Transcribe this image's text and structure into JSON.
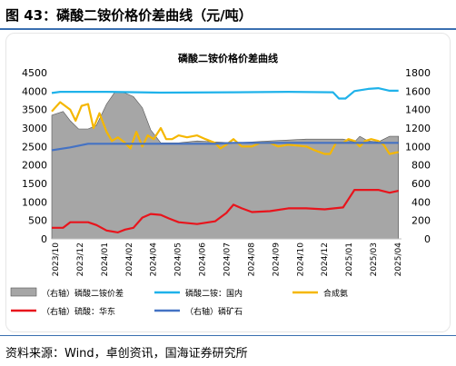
{
  "figure": {
    "label": "图 43：磷酸二铵价格价差曲线（元/吨）",
    "source": "资料来源：Wind，卓创资讯，国海证券研究所"
  },
  "colors": {
    "area": "#a6a6a6",
    "dap_domestic": "#1fb2ea",
    "ammonia": "#f5b700",
    "sulfuric": "#e8141c",
    "phosphate_rock": "#4472c4"
  },
  "chart_data": {
    "type": "area",
    "title": "磷酸二铵价格价差曲线",
    "x_ticks": [
      "2023/10",
      "2023/12",
      "2024/01",
      "2024/02",
      "2024/04",
      "2024/05",
      "2024/06",
      "2024/07",
      "2024/08",
      "2024/09",
      "2024/10",
      "2024/12",
      "2025/01",
      "2025/03",
      "2025/04"
    ],
    "x_range": [
      "2023-10-01",
      "2025-05-10"
    ],
    "y_left": {
      "range": [
        0,
        4500
      ],
      "ticks": [
        "0",
        "500",
        "1000",
        "1500",
        "2000",
        "2500",
        "3000",
        "3500",
        "4000",
        "4500"
      ]
    },
    "y_right": {
      "range": [
        0,
        1800
      ],
      "ticks": [
        "0",
        "200",
        "400",
        "600",
        "800",
        "1000",
        "1200",
        "1400",
        "1600",
        "1800"
      ]
    },
    "legend": [
      "（右轴）磷酸二铵价差",
      "磷酸二铵：国内",
      "合成氨",
      "（右轴）硫酸：华东",
      "（右轴）磷矿石"
    ],
    "series": [
      {
        "name": "（右轴）磷酸二铵价差",
        "axis": "right",
        "kind": "area",
        "color": "#a6a6a6",
        "points": [
          [
            "2023-10-01",
            1340
          ],
          [
            "2023-10-20",
            1380
          ],
          [
            "2023-11-01",
            1280
          ],
          [
            "2023-11-15",
            1190
          ],
          [
            "2023-12-01",
            1190
          ],
          [
            "2023-12-15",
            1230
          ],
          [
            "2024-01-01",
            1460
          ],
          [
            "2024-01-15",
            1590
          ],
          [
            "2024-02-01",
            1580
          ],
          [
            "2024-02-15",
            1540
          ],
          [
            "2024-03-01",
            1420
          ],
          [
            "2024-03-15",
            1180
          ],
          [
            "2024-04-01",
            1040
          ],
          [
            "2024-05-01",
            1040
          ],
          [
            "2024-06-01",
            1060
          ],
          [
            "2024-07-01",
            1050
          ],
          [
            "2024-08-01",
            1040
          ],
          [
            "2024-09-01",
            1050
          ],
          [
            "2024-10-01",
            1060
          ],
          [
            "2024-11-01",
            1070
          ],
          [
            "2024-12-01",
            1080
          ],
          [
            "2025-01-01",
            1080
          ],
          [
            "2025-02-01",
            1080
          ],
          [
            "2025-02-20",
            1050
          ],
          [
            "2025-03-01",
            1110
          ],
          [
            "2025-03-15",
            1060
          ],
          [
            "2025-04-01",
            1050
          ],
          [
            "2025-04-20",
            1110
          ],
          [
            "2025-05-05",
            1110
          ]
        ]
      },
      {
        "name": "磷酸二铵：国内",
        "axis": "left",
        "kind": "line",
        "color": "#1fb2ea",
        "points": [
          [
            "2023-10-01",
            3950
          ],
          [
            "2023-10-15",
            3980
          ],
          [
            "2024-01-01",
            3980
          ],
          [
            "2024-04-01",
            3960
          ],
          [
            "2024-08-01",
            3970
          ],
          [
            "2024-11-01",
            3980
          ],
          [
            "2025-01-15",
            3970
          ],
          [
            "2025-01-25",
            3800
          ],
          [
            "2025-02-05",
            3800
          ],
          [
            "2025-02-20",
            4000
          ],
          [
            "2025-03-15",
            4060
          ],
          [
            "2025-04-01",
            4080
          ],
          [
            "2025-04-20",
            4010
          ],
          [
            "2025-05-05",
            4010
          ]
        ]
      },
      {
        "name": "合成氨",
        "axis": "left",
        "kind": "line",
        "color": "#f5b700",
        "points": [
          [
            "2023-10-01",
            3450
          ],
          [
            "2023-10-15",
            3700
          ],
          [
            "2023-11-01",
            3500
          ],
          [
            "2023-11-10",
            3200
          ],
          [
            "2023-11-20",
            3600
          ],
          [
            "2023-12-01",
            3650
          ],
          [
            "2023-12-10",
            3000
          ],
          [
            "2023-12-20",
            3400
          ],
          [
            "2024-01-01",
            2900
          ],
          [
            "2024-01-10",
            2650
          ],
          [
            "2024-01-20",
            2750
          ],
          [
            "2024-02-01",
            2600
          ],
          [
            "2024-02-10",
            2450
          ],
          [
            "2024-02-20",
            2900
          ],
          [
            "2024-03-01",
            2500
          ],
          [
            "2024-03-10",
            2800
          ],
          [
            "2024-03-20",
            2700
          ],
          [
            "2024-04-01",
            3000
          ],
          [
            "2024-04-10",
            2700
          ],
          [
            "2024-04-20",
            2700
          ],
          [
            "2024-05-01",
            2800
          ],
          [
            "2024-05-15",
            2750
          ],
          [
            "2024-06-01",
            2800
          ],
          [
            "2024-06-15",
            2700
          ],
          [
            "2024-07-01",
            2600
          ],
          [
            "2024-07-10",
            2450
          ],
          [
            "2024-07-20",
            2550
          ],
          [
            "2024-08-01",
            2700
          ],
          [
            "2024-08-15",
            2500
          ],
          [
            "2024-09-01",
            2500
          ],
          [
            "2024-09-15",
            2600
          ],
          [
            "2024-10-01",
            2600
          ],
          [
            "2024-10-15",
            2500
          ],
          [
            "2024-11-01",
            2550
          ],
          [
            "2024-12-01",
            2500
          ],
          [
            "2024-12-15",
            2400
          ],
          [
            "2025-01-01",
            2300
          ],
          [
            "2025-01-10",
            2300
          ],
          [
            "2025-01-20",
            2600
          ],
          [
            "2025-02-01",
            2600
          ],
          [
            "2025-02-10",
            2700
          ],
          [
            "2025-02-20",
            2650
          ],
          [
            "2025-03-01",
            2500
          ],
          [
            "2025-03-10",
            2650
          ],
          [
            "2025-03-20",
            2700
          ],
          [
            "2025-04-01",
            2650
          ],
          [
            "2025-04-10",
            2550
          ],
          [
            "2025-04-20",
            2300
          ],
          [
            "2025-05-05",
            2350
          ]
        ]
      },
      {
        "name": "（右轴）硫酸：华东",
        "axis": "right",
        "kind": "line",
        "color": "#e8141c",
        "points": [
          [
            "2023-10-01",
            120
          ],
          [
            "2023-10-20",
            120
          ],
          [
            "2023-11-01",
            180
          ],
          [
            "2023-12-01",
            180
          ],
          [
            "2023-12-15",
            150
          ],
          [
            "2024-01-01",
            90
          ],
          [
            "2024-01-20",
            70
          ],
          [
            "2024-02-01",
            100
          ],
          [
            "2024-02-15",
            120
          ],
          [
            "2024-03-01",
            230
          ],
          [
            "2024-03-15",
            270
          ],
          [
            "2024-04-01",
            260
          ],
          [
            "2024-04-15",
            220
          ],
          [
            "2024-05-01",
            180
          ],
          [
            "2024-06-01",
            160
          ],
          [
            "2024-07-01",
            190
          ],
          [
            "2024-07-20",
            280
          ],
          [
            "2024-08-01",
            370
          ],
          [
            "2024-08-15",
            330
          ],
          [
            "2024-09-01",
            290
          ],
          [
            "2024-10-01",
            300
          ],
          [
            "2024-11-01",
            330
          ],
          [
            "2024-12-01",
            330
          ],
          [
            "2025-01-01",
            320
          ],
          [
            "2025-02-01",
            340
          ],
          [
            "2025-02-10",
            430
          ],
          [
            "2025-02-20",
            530
          ],
          [
            "2025-04-01",
            530
          ],
          [
            "2025-04-20",
            500
          ],
          [
            "2025-05-05",
            520
          ]
        ]
      },
      {
        "name": "（右轴）磷矿石",
        "axis": "right",
        "kind": "line",
        "color": "#4472c4",
        "points": [
          [
            "2023-10-01",
            960
          ],
          [
            "2023-11-01",
            990
          ],
          [
            "2023-12-01",
            1030
          ],
          [
            "2024-04-01",
            1030
          ],
          [
            "2024-07-01",
            1030
          ],
          [
            "2024-08-01",
            1040
          ],
          [
            "2025-05-05",
            1040
          ]
        ]
      }
    ]
  }
}
